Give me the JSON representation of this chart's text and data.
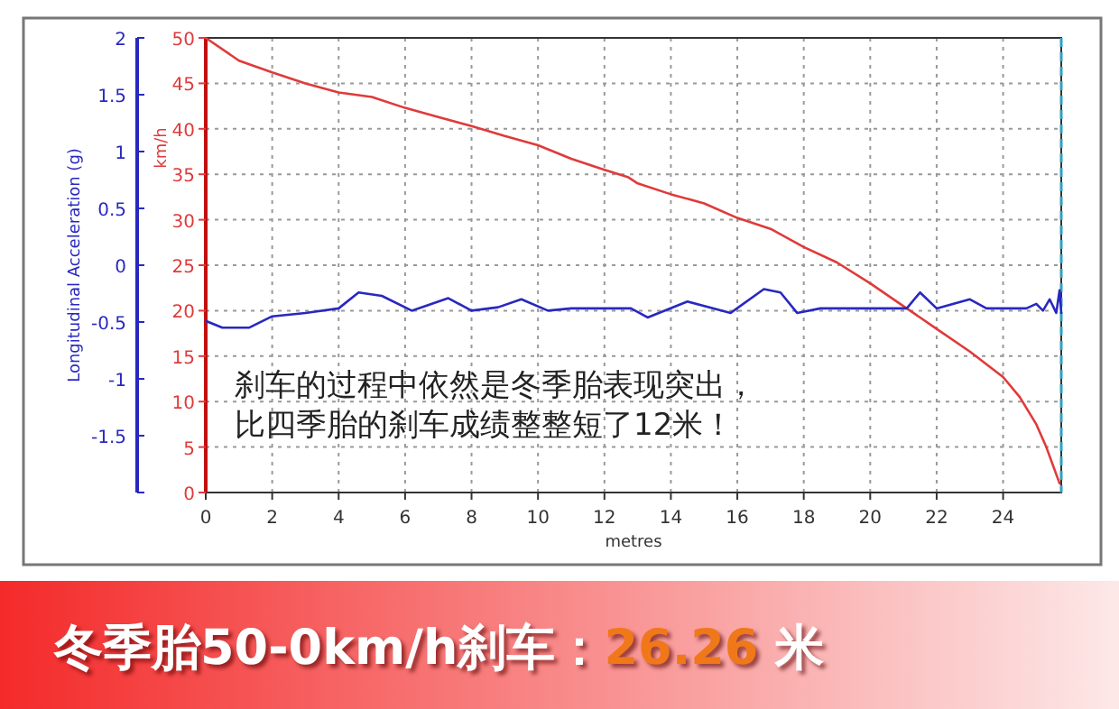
{
  "chart_data": {
    "type": "line",
    "title": "冬季胎50-0km/h刹车：26.26 米",
    "xlabel": "metres",
    "ylabel": "km/h",
    "y2label": "Longitudinal Acceleration (g)",
    "annotations": [
      "刹车的过程中依然是冬季胎表现突出，",
      "比四季胎的刹车成绩整整短了12米！"
    ],
    "xlim": [
      0,
      25.75
    ],
    "xticks": [
      0,
      2,
      4,
      6,
      8,
      10,
      12,
      14,
      16,
      18,
      20,
      22,
      24
    ],
    "ylim": [
      0,
      50
    ],
    "yticks": [
      0,
      5,
      10,
      15,
      20,
      25,
      30,
      35,
      40,
      45,
      50
    ],
    "y2lim": [
      -2,
      2
    ],
    "y2ticks": [
      {
        "value": -2,
        "label": null
      },
      -1.5,
      -1,
      -0.5,
      0,
      0.5,
      1,
      1.5,
      2
    ],
    "grid": true,
    "line_style": "solid",
    "marker": "none",
    "ref_lines": [
      {
        "axis": "x",
        "value": 25.75,
        "color": "#30a0c0",
        "line_style": "dashed"
      }
    ],
    "series": [
      {
        "color": "#e03a3a",
        "axis": "y",
        "x": [
          0,
          1,
          2,
          3,
          4,
          5,
          6,
          7,
          8,
          9,
          10,
          11,
          12,
          12.7,
          13,
          14,
          15,
          16,
          17,
          18,
          19,
          20,
          21,
          22,
          23,
          24,
          24.5,
          25,
          25.3,
          25.6,
          25.7
        ],
        "values": [
          50,
          47.5,
          46.2,
          45,
          44,
          43.5,
          42.3,
          41.3,
          40.3,
          39.2,
          38.2,
          36.7,
          35.5,
          34.7,
          34,
          32.8,
          31.8,
          30.2,
          29,
          27,
          25.3,
          23,
          20.5,
          18,
          15.5,
          12.7,
          10.5,
          7.5,
          5,
          2,
          1
        ]
      },
      {
        "color": "#2828c0",
        "axis": "y2",
        "x": [
          0,
          0.5,
          1.3,
          2,
          3,
          4,
          4.6,
          5.3,
          6.2,
          7.3,
          8,
          8.8,
          9.5,
          10.3,
          11,
          12,
          12.8,
          13.3,
          14.5,
          15.8,
          16.8,
          17.3,
          17.8,
          18.5,
          20.5,
          21.1,
          21.5,
          22,
          23,
          23.5,
          24.7,
          25,
          25.2,
          25.4,
          25.6,
          25.7,
          25.75
        ],
        "values": [
          -0.49,
          -0.55,
          -0.55,
          -0.45,
          -0.42,
          -0.38,
          -0.24,
          -0.27,
          -0.4,
          -0.29,
          -0.4,
          -0.37,
          -0.3,
          -0.4,
          -0.38,
          -0.38,
          -0.38,
          -0.46,
          -0.32,
          -0.42,
          -0.21,
          -0.24,
          -0.42,
          -0.38,
          -0.38,
          -0.38,
          -0.24,
          -0.38,
          -0.3,
          -0.38,
          -0.38,
          -0.34,
          -0.4,
          -0.3,
          -0.42,
          -0.22,
          -0.42
        ]
      }
    ]
  }
}
